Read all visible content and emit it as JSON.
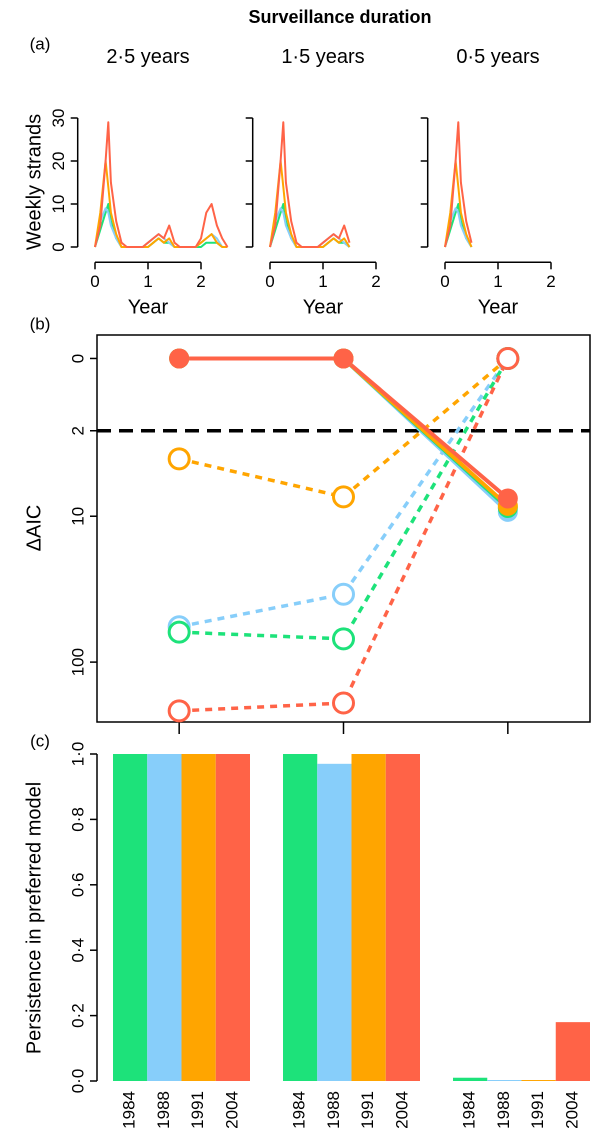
{
  "title": "Surveillance duration",
  "chart_data": [
    {
      "type": "line",
      "panel_label": "(a)",
      "title": "2·5 years",
      "xlabel": "Year",
      "ylabel": "Weekly strands",
      "xlim": [
        -0.1,
        2.6
      ],
      "ylim": [
        -1,
        31
      ],
      "xticks": [
        0,
        1,
        2
      ],
      "yticks": [
        0,
        10,
        20,
        30
      ],
      "x": [
        0,
        0.1,
        0.2,
        0.25,
        0.3,
        0.4,
        0.5,
        0.6,
        0.7,
        0.8,
        0.9,
        1.0,
        1.1,
        1.2,
        1.3,
        1.4,
        1.5,
        1.6,
        1.7,
        1.8,
        1.9,
        2.0,
        2.1,
        2.2,
        2.3,
        2.4,
        2.5
      ],
      "series": [
        {
          "color": "#1de27a",
          "values": [
            0,
            4,
            8,
            10,
            6,
            2,
            0,
            0,
            0,
            0,
            0,
            0,
            1,
            2,
            1,
            1,
            0,
            0,
            0,
            0,
            0,
            0,
            1,
            1,
            1,
            0,
            0
          ]
        },
        {
          "color": "#87cefa",
          "values": [
            0,
            6,
            9,
            8,
            5,
            2,
            0,
            0,
            0,
            0,
            0,
            1,
            2,
            3,
            2,
            1,
            0,
            0,
            0,
            0,
            0,
            1,
            2,
            3,
            2,
            0,
            0
          ]
        },
        {
          "color": "#ffa500",
          "values": [
            0,
            8,
            20,
            14,
            8,
            3,
            0,
            0,
            0,
            0,
            0,
            0,
            1,
            2,
            1,
            2,
            0,
            0,
            0,
            0,
            0,
            1,
            2,
            3,
            1,
            0,
            0
          ]
        },
        {
          "color": "#ff6347",
          "values": [
            0,
            5,
            20,
            29,
            15,
            6,
            1,
            0,
            0,
            0,
            0,
            1,
            2,
            3,
            2,
            5,
            1,
            0,
            0,
            0,
            0,
            2,
            8,
            10,
            5,
            2,
            0
          ]
        }
      ]
    },
    {
      "type": "line",
      "title": "1·5 years",
      "xlabel": "Year",
      "ytick_labels": false,
      "xlim": [
        -0.1,
        2.6
      ],
      "ylim": [
        -1,
        31
      ],
      "xticks": [
        0,
        1,
        2
      ],
      "yticks": [
        0,
        10,
        20,
        30
      ],
      "x": [
        0,
        0.1,
        0.2,
        0.25,
        0.3,
        0.4,
        0.5,
        0.6,
        0.7,
        0.8,
        0.9,
        1.0,
        1.1,
        1.2,
        1.3,
        1.4,
        1.5
      ],
      "series": [
        {
          "color": "#1de27a",
          "values": [
            0,
            4,
            8,
            10,
            6,
            2,
            0,
            0,
            0,
            0,
            0,
            0,
            1,
            2,
            1,
            1,
            0
          ]
        },
        {
          "color": "#87cefa",
          "values": [
            0,
            6,
            9,
            8,
            5,
            2,
            0,
            0,
            0,
            0,
            0,
            1,
            2,
            3,
            2,
            1,
            0
          ]
        },
        {
          "color": "#ffa500",
          "values": [
            0,
            8,
            20,
            14,
            8,
            3,
            0,
            0,
            0,
            0,
            0,
            0,
            1,
            2,
            1,
            2,
            0
          ]
        },
        {
          "color": "#ff6347",
          "values": [
            0,
            5,
            20,
            29,
            15,
            6,
            1,
            0,
            0,
            0,
            0,
            1,
            2,
            3,
            2,
            5,
            1
          ]
        }
      ]
    },
    {
      "type": "line",
      "title": "0·5 years",
      "xlabel": "Year",
      "ytick_labels": false,
      "xlim": [
        -0.1,
        2.6
      ],
      "ylim": [
        -1,
        31
      ],
      "xticks": [
        0,
        1,
        2
      ],
      "yticks": [
        0,
        10,
        20,
        30
      ],
      "x": [
        0,
        0.1,
        0.2,
        0.25,
        0.3,
        0.4,
        0.5
      ],
      "series": [
        {
          "color": "#1de27a",
          "values": [
            0,
            4,
            8,
            10,
            6,
            2,
            0
          ]
        },
        {
          "color": "#87cefa",
          "values": [
            0,
            6,
            9,
            8,
            5,
            2,
            0
          ]
        },
        {
          "color": "#ffa500",
          "values": [
            0,
            8,
            20,
            14,
            8,
            3,
            0
          ]
        },
        {
          "color": "#ff6347",
          "values": [
            0,
            5,
            20,
            29,
            15,
            6,
            1
          ]
        }
      ]
    },
    {
      "type": "line",
      "panel_label": "(b)",
      "ylabel": "ΔAIC",
      "yscale": "log1p",
      "y_inverted": true,
      "frame": true,
      "markers": true,
      "ylim": [
        -0.3,
        250
      ],
      "yticks": [
        0,
        2,
        10,
        100
      ],
      "hline": 2,
      "categories": [
        null,
        null,
        null
      ],
      "series": [
        {
          "color": "#ffa500",
          "dashed": true,
          "values": [
            3.6,
            7.2,
            0
          ]
        },
        {
          "color": "#87cefa",
          "dashed": true,
          "values": [
            58,
            35,
            0
          ]
        },
        {
          "color": "#1de27a",
          "dashed": true,
          "values": [
            63,
            70,
            0
          ]
        },
        {
          "color": "#ff6347",
          "dashed": true,
          "values": [
            211,
            187,
            0
          ]
        },
        {
          "color": "#87cefa",
          "values": [
            0,
            0,
            9.3
          ]
        },
        {
          "color": "#1de27a",
          "values": [
            0,
            0,
            8.7
          ]
        },
        {
          "color": "#ffa500",
          "values": [
            0,
            0,
            8.4
          ]
        },
        {
          "color": "#ff6347",
          "values": [
            0,
            0,
            7.4
          ]
        }
      ]
    },
    {
      "type": "bar",
      "panel_label": "(c)",
      "ylabel": "Persistence in preferred model",
      "ylim": [
        0,
        1
      ],
      "yticks": [
        {
          "value": 0,
          "label": "0·0"
        },
        {
          "value": 0.2,
          "label": "0·2"
        },
        {
          "value": 0.4,
          "label": "0·4"
        },
        {
          "value": 0.6,
          "label": "0·6"
        },
        {
          "value": 0.8,
          "label": "0·8"
        },
        {
          "value": 1,
          "label": "1·0"
        }
      ],
      "colors": [
        "#1de27a",
        "#87cefa",
        "#ffa500",
        "#ff6347"
      ],
      "groups": [
        {
          "categories": [
            "1984",
            "1988",
            "1991",
            "2004"
          ],
          "values": [
            1,
            1,
            1,
            1
          ]
        },
        {
          "categories": [
            "1984",
            "1988",
            "1991",
            "2004"
          ],
          "values": [
            1,
            0.97,
            1,
            1
          ]
        },
        {
          "categories": [
            "1984",
            "1988",
            "1991",
            "2004"
          ],
          "values": [
            0.01,
            0.003,
            0.003,
            0.18
          ]
        }
      ]
    }
  ]
}
